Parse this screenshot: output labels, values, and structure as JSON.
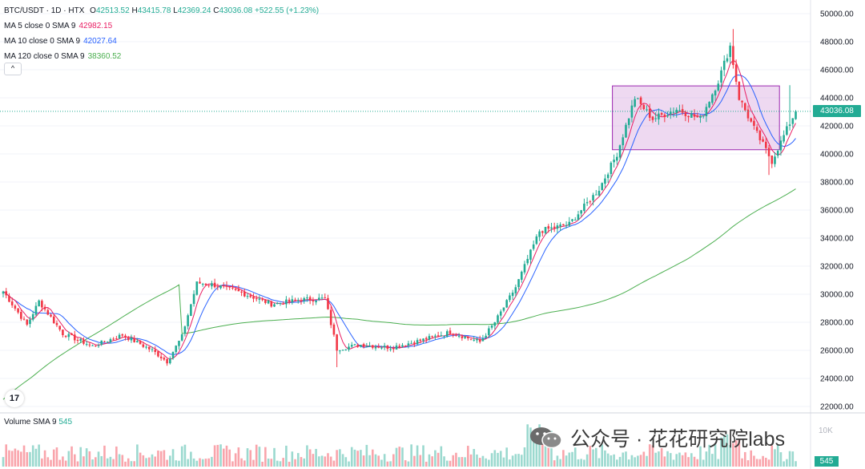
{
  "legend": {
    "symbol": "BTC/USDT · 1D · HTX",
    "ohlc": {
      "o_label": "O",
      "o": "42513.52",
      "h_label": "H",
      "h": "43415.78",
      "l_label": "L",
      "l": "42369.24",
      "c_label": "C",
      "c": "43036.08",
      "chg": "+522.55 (+1.23%)"
    },
    "ma5": {
      "label": "MA 5 close 0 SMA 9",
      "value": "42982.15",
      "color": "#e91e63"
    },
    "ma10": {
      "label": "MA 10 close 0 SMA 9",
      "value": "42027.64",
      "color": "#2962ff"
    },
    "ma120": {
      "label": "MA 120 close 0 SMA 9",
      "value": "38360.52",
      "color": "#4caf50"
    },
    "collapse_icon": "chevron-up-icon"
  },
  "volume_legend": {
    "label": "Volume SMA 9",
    "value": "545"
  },
  "price_tag": "43036.08",
  "volume_tag": "545",
  "volume_axis_label": "10K",
  "watermark": "公众号 · 花花研究院labs",
  "logo_text": "17",
  "colors": {
    "up": "#22ab94",
    "down": "#f23645",
    "ma5": "#e91e63",
    "ma10": "#2962ff",
    "ma120": "#4caf50",
    "box_fill": "#ce93d8",
    "box_stroke": "#9c27b0",
    "grid": "#f0f3fa"
  },
  "chart_data": {
    "type": "candlestick",
    "symbol": "BTC/USDT",
    "interval": "1D",
    "exchange": "HTX",
    "y_axis_ticks": [
      "22000.00",
      "24000.00",
      "26000.00",
      "28000.00",
      "30000.00",
      "32000.00",
      "34000.00",
      "36000.00",
      "38000.00",
      "40000.00",
      "42000.00",
      "44000.00",
      "46000.00",
      "48000.00",
      "50000.00"
    ],
    "ylim": [
      21500,
      50500
    ],
    "last_price": 43036.08,
    "range_box": {
      "x_start": 205,
      "x_end": 260,
      "y_low": 40300,
      "y_high": 44850
    },
    "anchors": [
      [
        0,
        30200
      ],
      [
        8,
        27800
      ],
      [
        12,
        29500
      ],
      [
        20,
        27200
      ],
      [
        30,
        26300
      ],
      [
        40,
        27100
      ],
      [
        50,
        26000
      ],
      [
        55,
        25200
      ],
      [
        60,
        27000
      ],
      [
        65,
        30800
      ],
      [
        70,
        30700
      ],
      [
        80,
        30100
      ],
      [
        90,
        29300
      ],
      [
        100,
        29600
      ],
      [
        108,
        29700
      ],
      [
        112,
        26100
      ],
      [
        120,
        26400
      ],
      [
        130,
        26200
      ],
      [
        140,
        26700
      ],
      [
        150,
        27300
      ],
      [
        160,
        26600
      ],
      [
        165,
        28000
      ],
      [
        172,
        30500
      ],
      [
        180,
        34500
      ],
      [
        190,
        35000
      ],
      [
        200,
        37500
      ],
      [
        206,
        40000
      ],
      [
        212,
        44000
      ],
      [
        218,
        42500
      ],
      [
        226,
        43200
      ],
      [
        234,
        42500
      ],
      [
        240,
        45200
      ],
      [
        244,
        47700
      ],
      [
        247,
        44000
      ],
      [
        252,
        41800
      ],
      [
        258,
        39500
      ],
      [
        264,
        42200
      ],
      [
        266,
        43036
      ]
    ],
    "spikes": [
      [
        245,
        "high",
        48900
      ],
      [
        257,
        "low",
        38500
      ],
      [
        264,
        "high",
        44900
      ],
      [
        112,
        "low",
        24800
      ],
      [
        55,
        "low",
        24900
      ]
    ],
    "volume_ylim": [
      0,
      10000
    ]
  }
}
